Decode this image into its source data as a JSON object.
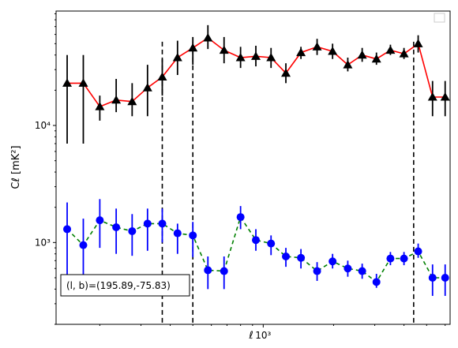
{
  "chart_data": {
    "type": "scatter",
    "title": "",
    "xlabel": "ℓ",
    "ylabel": "Cℓ  [mK²]",
    "xscale": "log",
    "yscale": "log",
    "xlim": [
      130,
      6300
    ],
    "ylim": [
      200,
      95000
    ],
    "x_tick_labels": [
      "10³"
    ],
    "y_tick_labels": [
      "10³",
      "10⁴"
    ],
    "legend_placement": "upper-right (empty)",
    "annotation": "(l, b)=(195.89,-75.83)",
    "vlines": [
      370,
      500,
      4400
    ],
    "colors": {
      "upper_line": "#ff0000",
      "upper_marker": "#000000",
      "lower_line": "#008000",
      "lower_marker": "#0000ff",
      "vline": "#000000"
    },
    "series": [
      {
        "marker": "triangle",
        "line": "solid",
        "x": [
          145,
          170,
          200,
          235,
          275,
          320,
          370,
          430,
          500,
          580,
          680,
          800,
          930,
          1080,
          1250,
          1450,
          1700,
          1980,
          2300,
          2650,
          3050,
          3500,
          4000,
          4600,
          5300,
          6000
        ],
        "y": [
          23000,
          23000,
          14500,
          16500,
          16000,
          21000,
          26000,
          38000,
          46000,
          56000,
          44000,
          38000,
          39000,
          38000,
          28000,
          42000,
          47000,
          43000,
          33000,
          40000,
          37000,
          44000,
          41000,
          50000,
          17500,
          17500
        ],
        "y_low": [
          7000,
          7000,
          11000,
          13000,
          12000,
          12000,
          18000,
          27000,
          33000,
          45000,
          34000,
          31000,
          32000,
          31000,
          23000,
          37000,
          40000,
          37000,
          29000,
          35000,
          33000,
          40000,
          37000,
          42000,
          12000,
          12000
        ],
        "y_high": [
          40000,
          40000,
          18000,
          25000,
          23000,
          33000,
          37000,
          53000,
          57000,
          72000,
          57000,
          47000,
          48000,
          46000,
          34000,
          47000,
          55000,
          50000,
          38000,
          46000,
          42000,
          49000,
          46000,
          59000,
          24000,
          24000
        ]
      },
      {
        "marker": "circle",
        "line": "dashed",
        "x": [
          145,
          170,
          200,
          235,
          275,
          320,
          370,
          430,
          500,
          580,
          680,
          800,
          930,
          1080,
          1250,
          1450,
          1700,
          1980,
          2300,
          2650,
          3050,
          3500,
          4000,
          4600,
          5300,
          6000
        ],
        "y": [
          1300,
          950,
          1550,
          1350,
          1250,
          1450,
          1450,
          1200,
          1150,
          580,
          570,
          1650,
          1050,
          980,
          760,
          740,
          570,
          690,
          600,
          570,
          460,
          730,
          730,
          840,
          500,
          500
        ],
        "y_low": [
          380,
          470,
          900,
          800,
          770,
          850,
          1000,
          800,
          750,
          400,
          400,
          1300,
          850,
          780,
          620,
          600,
          470,
          600,
          510,
          490,
          410,
          640,
          640,
          740,
          350,
          350
        ],
        "y_high": [
          2200,
          1600,
          2350,
          1950,
          1750,
          1950,
          1950,
          1450,
          1500,
          760,
          760,
          2050,
          1300,
          1150,
          900,
          880,
          680,
          800,
          700,
          660,
          540,
          830,
          830,
          980,
          650,
          650
        ]
      }
    ]
  }
}
